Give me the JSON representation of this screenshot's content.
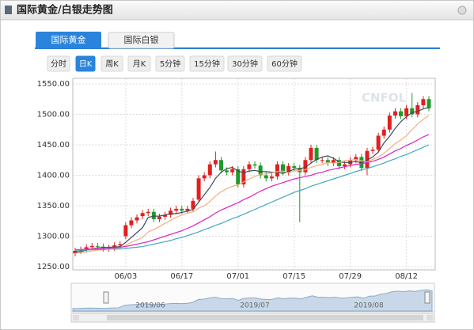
{
  "header": {
    "title": "国际黄金/白银走势图"
  },
  "tabs": [
    "国际黄金",
    "国际白银"
  ],
  "periods": [
    "分时",
    "日K",
    "周K",
    "月K",
    "5分钟",
    "15分钟",
    "30分钟",
    "60分钟"
  ],
  "watermark": "CNFOL",
  "navigator": {
    "labels": [
      "2019/06",
      "2019/07",
      "2019/08"
    ]
  },
  "chart_data": {
    "type": "candlestick",
    "categories": [
      null,
      null,
      null,
      null,
      null,
      null,
      null,
      null,
      null,
      "06/03",
      null,
      null,
      null,
      null,
      null,
      null,
      null,
      null,
      null,
      "06/17",
      null,
      null,
      null,
      null,
      null,
      null,
      null,
      null,
      null,
      "07/01",
      null,
      null,
      null,
      null,
      null,
      null,
      null,
      null,
      null,
      "07/15",
      null,
      null,
      null,
      null,
      null,
      null,
      null,
      null,
      null,
      "07/29",
      null,
      null,
      null,
      null,
      null,
      null,
      null,
      null,
      null,
      "08/12",
      null,
      null,
      null,
      null
    ],
    "open": [
      1272,
      1276,
      1278,
      1282,
      1284,
      1283,
      1280,
      1281,
      1285,
      1300,
      1318,
      1326,
      1333,
      1338,
      1340,
      1328,
      1332,
      1335,
      1342,
      1345,
      1342,
      1345,
      1360,
      1395,
      1400,
      1418,
      1425,
      1408,
      1405,
      1410,
      1385,
      1410,
      1418,
      1416,
      1400,
      1395,
      1398,
      1418,
      1405,
      1415,
      1412,
      1405,
      1425,
      1445,
      1425,
      1425,
      1420,
      1425,
      1415,
      1418,
      1425,
      1430,
      1412,
      1440,
      1442,
      1465,
      1475,
      1498,
      1505,
      1497,
      1510,
      1500,
      1515,
      1525
    ],
    "high": [
      1281,
      1283,
      1287,
      1289,
      1289,
      1288,
      1286,
      1290,
      1292,
      1323,
      1331,
      1336,
      1343,
      1345,
      1345,
      1337,
      1340,
      1347,
      1350,
      1350,
      1350,
      1363,
      1400,
      1405,
      1423,
      1439,
      1430,
      1413,
      1415,
      1415,
      1415,
      1423,
      1423,
      1421,
      1405,
      1403,
      1423,
      1423,
      1420,
      1420,
      1417,
      1430,
      1450,
      1450,
      1430,
      1430,
      1430,
      1430,
      1423,
      1430,
      1435,
      1435,
      1445,
      1447,
      1470,
      1480,
      1503,
      1510,
      1510,
      1515,
      1535,
      1520,
      1530,
      1530
    ],
    "low": [
      1267,
      1271,
      1273,
      1277,
      1278,
      1275,
      1275,
      1276,
      1280,
      1295,
      1313,
      1321,
      1328,
      1333,
      1323,
      1323,
      1327,
      1330,
      1337,
      1337,
      1337,
      1340,
      1355,
      1390,
      1395,
      1413,
      1403,
      1400,
      1400,
      1380,
      1380,
      1405,
      1411,
      1395,
      1390,
      1390,
      1393,
      1400,
      1400,
      1407,
      1323,
      1400,
      1420,
      1420,
      1420,
      1415,
      1415,
      1410,
      1410,
      1413,
      1420,
      1407,
      1400,
      1435,
      1437,
      1460,
      1470,
      1493,
      1492,
      1492,
      1495,
      1495,
      1510,
      1505
    ],
    "close": [
      1276,
      1278,
      1282,
      1284,
      1283,
      1280,
      1281,
      1285,
      1287,
      1318,
      1326,
      1331,
      1338,
      1340,
      1328,
      1332,
      1335,
      1342,
      1345,
      1342,
      1345,
      1358,
      1395,
      1400,
      1418,
      1425,
      1408,
      1405,
      1410,
      1385,
      1410,
      1418,
      1416,
      1400,
      1395,
      1398,
      1418,
      1405,
      1415,
      1412,
      1405,
      1425,
      1445,
      1425,
      1425,
      1420,
      1425,
      1415,
      1418,
      1425,
      1430,
      1412,
      1440,
      1442,
      1465,
      1475,
      1498,
      1505,
      1497,
      1510,
      1500,
      1515,
      1525,
      1510
    ],
    "up_color": "#e02020",
    "down_color": "#1f9a2a",
    "series": [
      {
        "color": "#3a4a5c",
        "values": [
          1274,
          1275,
          1277,
          1279,
          1281,
          1281,
          1282,
          1282,
          1283,
          1290,
          1298,
          1306,
          1314,
          1331,
          1333,
          1333,
          1335,
          1337,
          1337,
          1339,
          1341,
          1344,
          1356,
          1368,
          1380,
          1395,
          1405,
          1411,
          1413,
          1407,
          1404,
          1407,
          1408,
          1406,
          1406,
          1405,
          1405,
          1403,
          1406,
          1410,
          1411,
          1413,
          1420,
          1426,
          1430,
          1432,
          1428,
          1422,
          1421,
          1421,
          1423,
          1420,
          1425,
          1430,
          1438,
          1453,
          1464,
          1477,
          1488,
          1496,
          1503,
          1505,
          1509,
          1511
        ]
      },
      {
        "color": "#f0b080",
        "values": [
          1272,
          1273,
          1274,
          1276,
          1277,
          1278,
          1279,
          1280,
          1281,
          1285,
          1290,
          1294,
          1298,
          1307,
          1311,
          1316,
          1321,
          1326,
          1331,
          1335,
          1338,
          1340,
          1346,
          1350,
          1357,
          1366,
          1373,
          1378,
          1382,
          1384,
          1389,
          1394,
          1398,
          1402,
          1402,
          1404,
          1406,
          1407,
          1404,
          1407,
          1408,
          1409,
          1413,
          1416,
          1418,
          1421,
          1420,
          1421,
          1424,
          1425,
          1426,
          1424,
          1422,
          1426,
          1430,
          1436,
          1444,
          1452,
          1458,
          1465,
          1475,
          1484,
          1492,
          1498
        ]
      },
      {
        "color": "#e020c0",
        "values": [
          1278,
          1278,
          1279,
          1279,
          1280,
          1280,
          1281,
          1281,
          1282,
          1283,
          1285,
          1287,
          1289,
          1291,
          1294,
          1297,
          1300,
          1303,
          1306,
          1309,
          1313,
          1317,
          1322,
          1327,
          1332,
          1338,
          1343,
          1347,
          1351,
          1355,
          1360,
          1364,
          1369,
          1374,
          1378,
          1382,
          1385,
          1388,
          1391,
          1394,
          1396,
          1398,
          1400,
          1403,
          1405,
          1408,
          1410,
          1412,
          1414,
          1416,
          1418,
          1419,
          1421,
          1423,
          1426,
          1430,
          1435,
          1440,
          1444,
          1449,
          1453,
          1458,
          1463,
          1467
        ]
      },
      {
        "color": "#40a8c0",
        "values": [
          1277,
          1277,
          1277,
          1278,
          1278,
          1278,
          1279,
          1279,
          1279,
          1280,
          1281,
          1282,
          1283,
          1285,
          1287,
          1289,
          1291,
          1293,
          1296,
          1298,
          1301,
          1304,
          1307,
          1311,
          1314,
          1318,
          1321,
          1325,
          1329,
          1332,
          1336,
          1340,
          1344,
          1348,
          1352,
          1356,
          1360,
          1364,
          1368,
          1372,
          1375,
          1378,
          1382,
          1385,
          1388,
          1391,
          1394,
          1397,
          1400,
          1403,
          1406,
          1409,
          1411,
          1414,
          1417,
          1420,
          1424,
          1427,
          1431,
          1434,
          1438,
          1442,
          1446,
          1450
        ]
      }
    ],
    "ylim": [
      1250,
      1550
    ],
    "yticks": [
      {
        "value": 1250,
        "label": "1250.00"
      },
      {
        "value": 1300,
        "label": "1300.00"
      },
      {
        "value": 1350,
        "label": "1350.00"
      },
      {
        "value": 1400,
        "label": "1400.00"
      },
      {
        "value": 1450,
        "label": "1450.00"
      },
      {
        "value": 1500,
        "label": "1500.00"
      },
      {
        "value": 1550,
        "label": "1550.00"
      }
    ],
    "grid": true
  }
}
